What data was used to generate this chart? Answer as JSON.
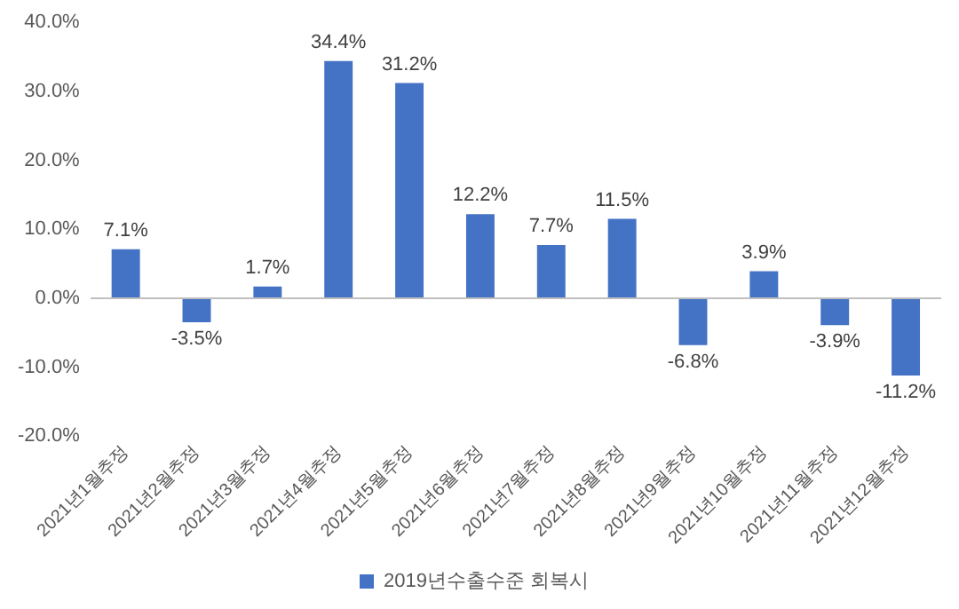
{
  "chart_data": {
    "type": "bar",
    "categories": [
      "2021년1월추정",
      "2021년2월추정",
      "2021년3월추정",
      "2021년4월추정",
      "2021년5월추정",
      "2021년6월추정",
      "2021년7월추정",
      "2021년8월추정",
      "2021년9월추정",
      "2021년10월추정",
      "2021년11월추정",
      "2021년12월추정"
    ],
    "series": [
      {
        "name": "2019년수출수준 회복시",
        "color": "#4472c4",
        "values": [
          7.1,
          -3.5,
          1.7,
          34.4,
          31.2,
          12.2,
          7.7,
          11.5,
          -6.8,
          3.9,
          -3.9,
          -11.2
        ],
        "value_labels": [
          "7.1%",
          "-3.5%",
          "1.7%",
          "34.4%",
          "31.2%",
          "12.2%",
          "7.7%",
          "11.5%",
          "-6.8%",
          "3.9%",
          "-3.9%",
          "-11.2%"
        ]
      }
    ],
    "ylim": [
      -20,
      40
    ],
    "yticks": [
      {
        "value": -20,
        "label": "-20.0%"
      },
      {
        "value": -10,
        "label": "-10.0%"
      },
      {
        "value": 0,
        "label": "0.0%"
      },
      {
        "value": 10,
        "label": "10.0%"
      },
      {
        "value": 20,
        "label": "20.0%"
      },
      {
        "value": 30,
        "label": "30.0%"
      },
      {
        "value": 40,
        "label": "40.0%"
      }
    ],
    "grid": "y",
    "legend": "bottom"
  }
}
